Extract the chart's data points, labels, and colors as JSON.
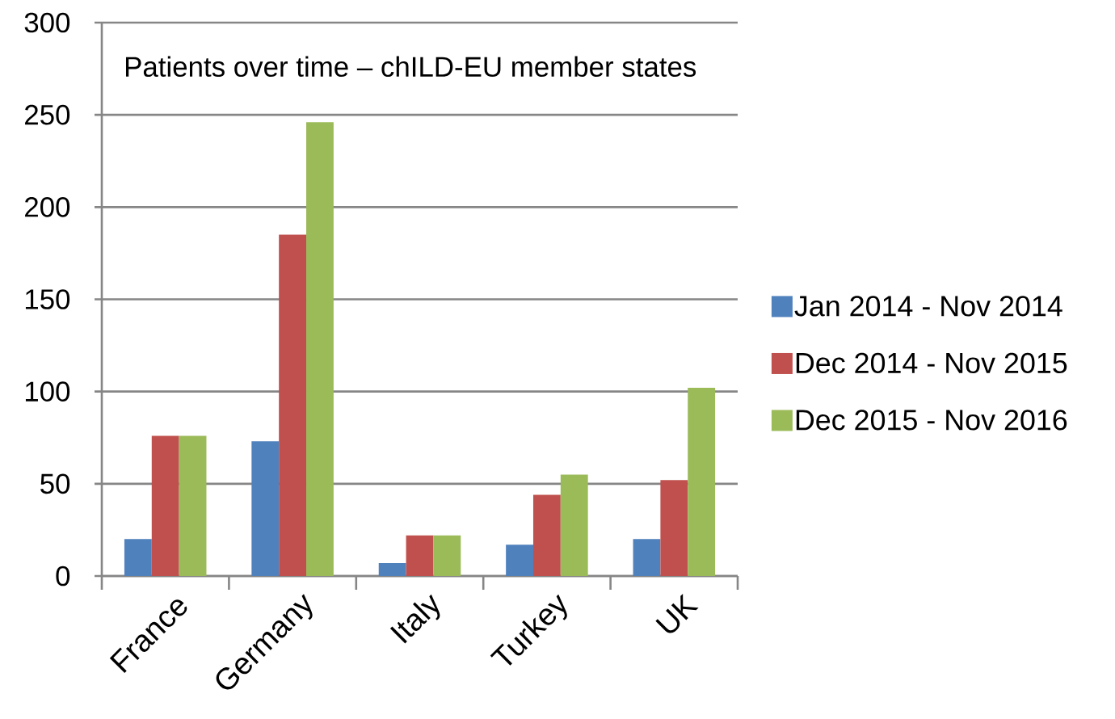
{
  "chart_data": {
    "type": "bar",
    "title": "Patients over time – chILD-EU member states",
    "categories": [
      "France",
      "Germany",
      "Italy",
      "Turkey",
      "UK"
    ],
    "series": [
      {
        "name": "Jan 2014 - Nov 2014",
        "color": "#4f81bd",
        "values": [
          20,
          73,
          7,
          17,
          20
        ]
      },
      {
        "name": "Dec 2014 - Nov 2015",
        "color": "#c0504d",
        "values": [
          76,
          185,
          22,
          44,
          52
        ]
      },
      {
        "name": "Dec 2015 - Nov 2016",
        "color": "#9bbb59",
        "values": [
          76,
          246,
          22,
          55,
          102
        ]
      }
    ],
    "ylim": [
      0,
      300
    ],
    "yticks": [
      0,
      50,
      100,
      150,
      200,
      250,
      300
    ],
    "grid": "y",
    "legend": "right"
  }
}
